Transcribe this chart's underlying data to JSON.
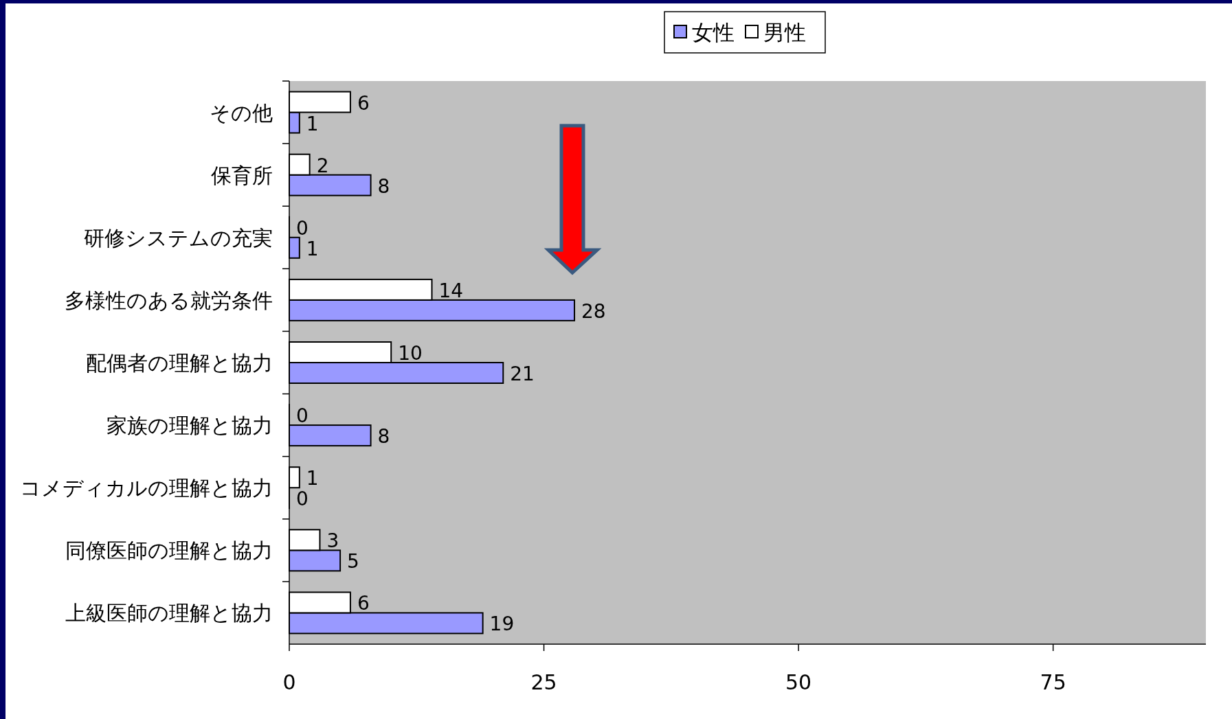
{
  "chart_data": {
    "type": "bar",
    "orientation": "horizontal",
    "categories": [
      "その他",
      "保育所",
      "研修システムの充実",
      "多様性のある就労条件",
      "配偶者の理解と協力",
      "家族の理解と協力",
      "コメディカルの理解と協力",
      "同僚医師の理解と協力",
      "上級医師の理解と協力"
    ],
    "series": [
      {
        "name": "女性",
        "color": "#9999ff",
        "values": [
          1,
          8,
          1,
          28,
          21,
          8,
          0,
          5,
          19
        ]
      },
      {
        "name": "男性",
        "color": "#ffffff",
        "values": [
          6,
          2,
          0,
          14,
          10,
          0,
          1,
          3,
          6
        ]
      }
    ],
    "xlim": [
      0,
      90
    ],
    "xticks": [
      0,
      25,
      50,
      75
    ],
    "data_labels": true,
    "legend": "top"
  }
}
